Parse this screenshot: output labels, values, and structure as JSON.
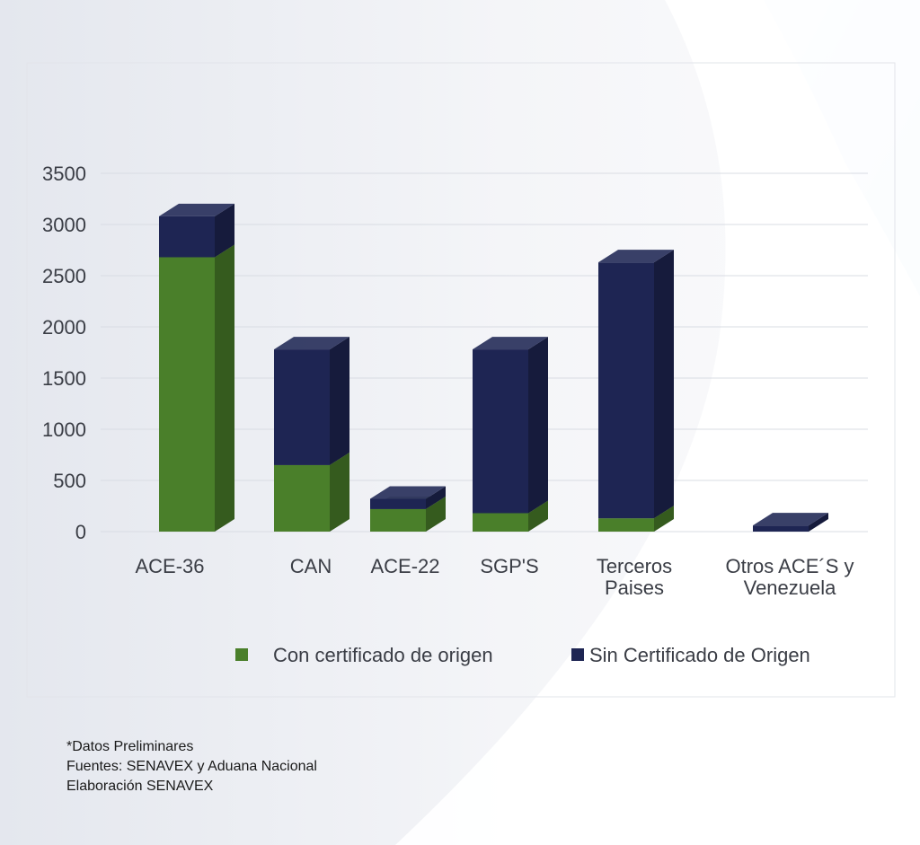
{
  "chart_data": {
    "type": "bar",
    "stacked": true,
    "three_d": true,
    "title": "",
    "xlabel": "",
    "ylabel": "",
    "ylim": [
      0,
      3500
    ],
    "yticks": [
      0,
      500,
      1000,
      1500,
      2000,
      2500,
      3000,
      3500
    ],
    "grid": true,
    "legend_position": "bottom",
    "categories": [
      [
        "ACE-36"
      ],
      [
        "CAN"
      ],
      [
        "ACE-22"
      ],
      [
        "SGP'S"
      ],
      [
        "Terceros",
        "Paises"
      ],
      [
        "Otros ACE´S y",
        "Venezuela"
      ]
    ],
    "series": [
      {
        "name": "Con certificado de origen",
        "color": "#4a7f2a",
        "values": [
          2680,
          650,
          220,
          180,
          130,
          0
        ]
      },
      {
        "name": "Sin Certificado de Origen",
        "color": "#1e2553",
        "values": [
          400,
          1130,
          100,
          1600,
          2500,
          60
        ]
      }
    ]
  },
  "footnotes": [
    "*Datos Preliminares",
    "Fuentes: SENAVEX y Aduana Nacional",
    "Elaboración SENAVEX"
  ]
}
